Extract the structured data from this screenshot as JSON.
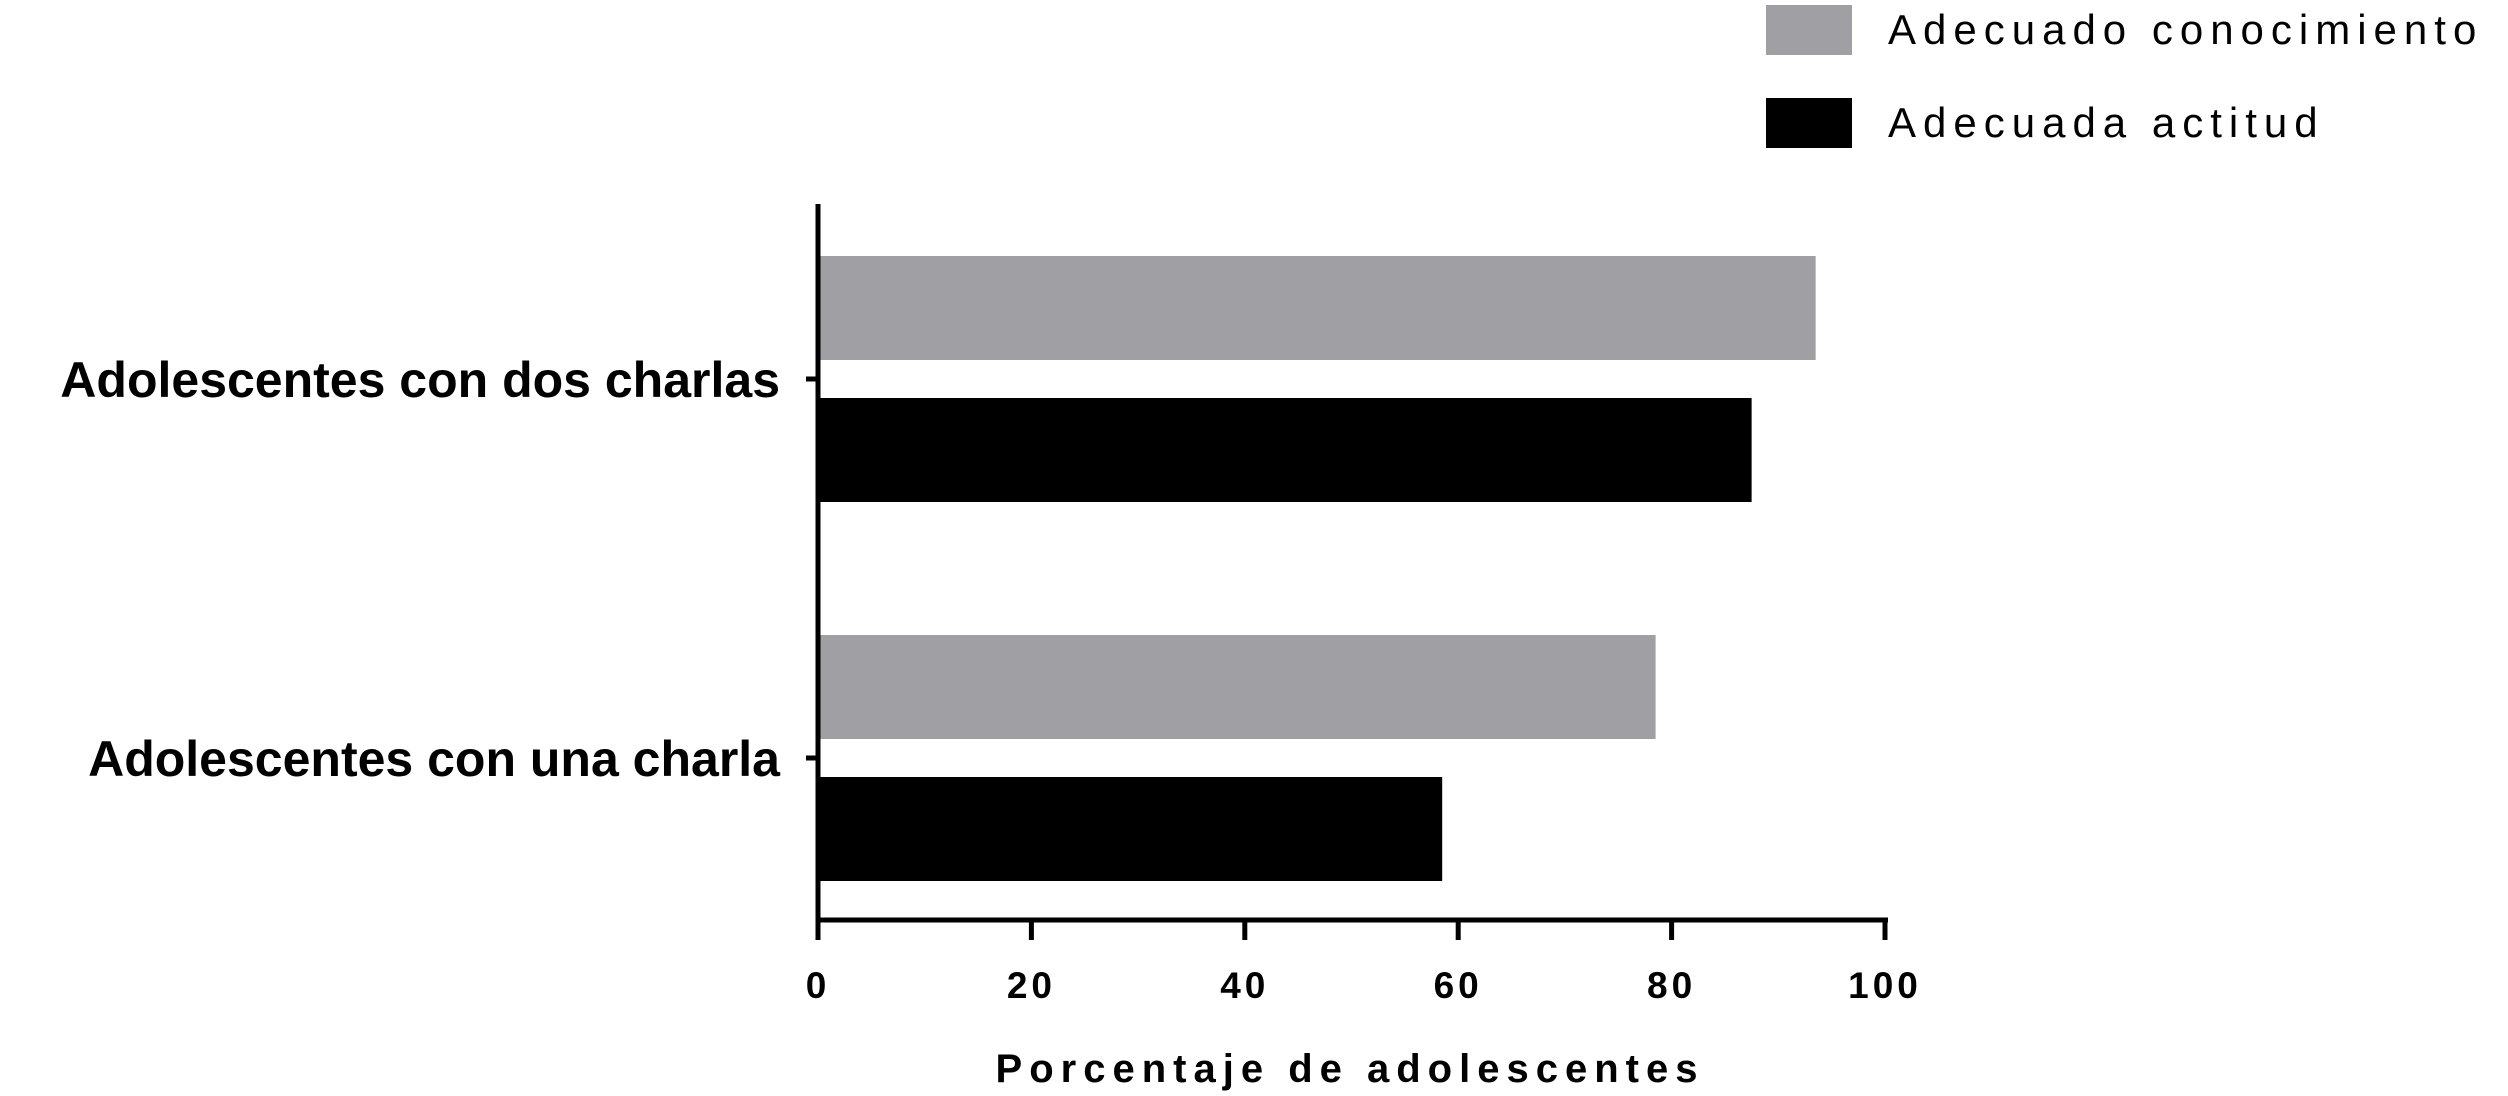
{
  "chart_data": {
    "type": "bar",
    "orientation": "horizontal",
    "categories": [
      "Adolescentes con dos charlas",
      "Adolescentes con una charla"
    ],
    "series": [
      {
        "name": "Adecuado conocimiento",
        "color": "#a09fa3",
        "values": [
          93.5,
          78.5
        ]
      },
      {
        "name": "Adecuada actitud",
        "color": "#000000",
        "values": [
          87.5,
          58.5
        ]
      }
    ],
    "xlabel": "Porcentaje de adolescentes",
    "ylabel": "",
    "xlim": [
      0,
      100
    ],
    "xticks": [
      "0",
      "20",
      "40",
      "60",
      "80",
      "100"
    ],
    "grid": false,
    "legend": "top-right"
  }
}
